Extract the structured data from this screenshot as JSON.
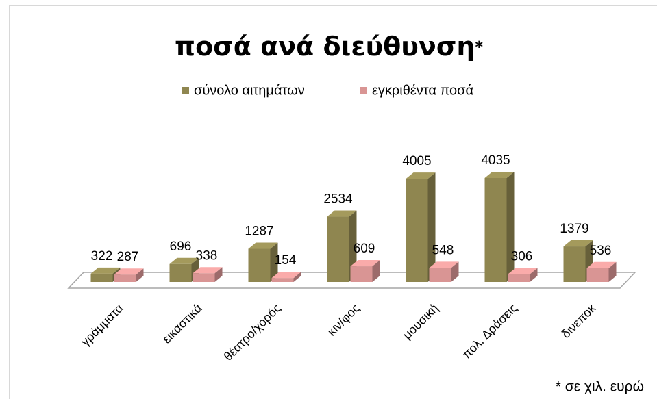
{
  "chart_data": {
    "type": "bar3d",
    "title": "ποσά ανά διεύθυνση",
    "title_suffix": "*",
    "categories": [
      "γράμματα",
      "εικαστικά",
      "θέατρο/χορός",
      "κιν/φος",
      "μουσική",
      "πολ. Δράσεις",
      "δινεποκ"
    ],
    "series": [
      {
        "name": "σύνολο αιτημάτων",
        "color": "#8f8650",
        "values": [
          322,
          696,
          1287,
          2534,
          4005,
          4035,
          1379
        ]
      },
      {
        "name": "εγκριθέντα ποσά",
        "color": "#d99594",
        "values": [
          287,
          338,
          154,
          609,
          548,
          306,
          536
        ]
      }
    ],
    "annotations": [
      "* σε χιλ. ευρώ"
    ]
  }
}
